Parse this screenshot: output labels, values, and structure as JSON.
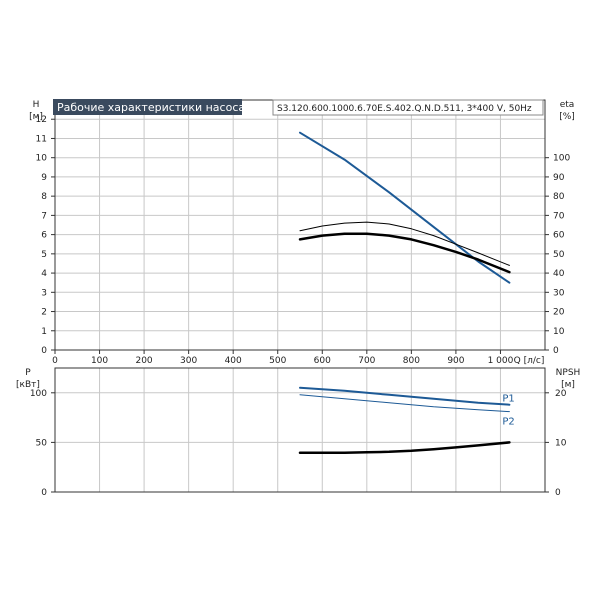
{
  "chart_data": [
    {
      "type": "line",
      "panel": "upper",
      "title": "Рабочие характеристики насоса",
      "model": "S3.120.600.1000.6.70E.S.402.Q.N.D.511, 3*400 V, 50Hz",
      "xlabel": "Q [л/с]",
      "ylabel_left": [
        "H",
        "[м]"
      ],
      "ylabel_right": [
        "eta",
        "[%]"
      ],
      "xlim": [
        0,
        1100
      ],
      "ylim_left": [
        0,
        13
      ],
      "ylim_right": [
        0,
        130
      ],
      "x_ticks": [
        0,
        100,
        200,
        300,
        400,
        500,
        600,
        700,
        800,
        900,
        1000
      ],
      "x_tick_labels": [
        "0",
        "100",
        "200",
        "300",
        "400",
        "500",
        "600",
        "700",
        "800",
        "900",
        "1 000"
      ],
      "y_ticks_left": [
        0,
        1,
        2,
        3,
        4,
        5,
        6,
        7,
        8,
        9,
        10,
        11,
        12
      ],
      "y_ticks_right": [
        0,
        10,
        20,
        30,
        40,
        50,
        60,
        70,
        80,
        90,
        100
      ],
      "grid": true,
      "series": [
        {
          "axis": "left",
          "color": "#1d5a96",
          "width": 2,
          "x": [
            550,
            650,
            750,
            850,
            950,
            1020
          ],
          "y": [
            11.3,
            9.9,
            8.2,
            6.4,
            4.6,
            3.5
          ]
        },
        {
          "axis": "right",
          "color": "#000000",
          "width": 1,
          "x": [
            550,
            600,
            650,
            700,
            750,
            800,
            850,
            900,
            950,
            1020
          ],
          "y": [
            62,
            64.5,
            66,
            66.5,
            65.5,
            63,
            59.5,
            55,
            50.5,
            44
          ]
        },
        {
          "axis": "right",
          "color": "#000000",
          "width": 2.5,
          "x": [
            550,
            600,
            650,
            700,
            750,
            800,
            850,
            900,
            950,
            1020
          ],
          "y": [
            57.5,
            59.5,
            60.5,
            60.5,
            59.5,
            57.5,
            54.5,
            51,
            47,
            40.5
          ]
        }
      ]
    },
    {
      "type": "line",
      "panel": "lower",
      "xlim": [
        0,
        1100
      ],
      "ylabel_left": [
        "P",
        "[кВт]"
      ],
      "ylabel_right": [
        "NPSH",
        "[м]"
      ],
      "ylim_left": [
        0,
        125
      ],
      "ylim_right": [
        0,
        25
      ],
      "y_ticks_left": [
        0,
        50,
        100
      ],
      "y_ticks_right": [
        0,
        10,
        20
      ],
      "grid": true,
      "series": [
        {
          "name": "P1",
          "axis": "left",
          "color": "#1d5a96",
          "width": 2,
          "x": [
            550,
            650,
            750,
            850,
            950,
            1020
          ],
          "y": [
            105,
            102,
            98,
            94,
            90,
            88
          ]
        },
        {
          "name": "P2",
          "axis": "left",
          "color": "#1d5a96",
          "width": 1,
          "x": [
            550,
            650,
            750,
            850,
            950,
            1020
          ],
          "y": [
            98,
            94,
            90,
            86,
            83,
            81
          ]
        },
        {
          "axis": "right",
          "color": "#000000",
          "width": 2.5,
          "x": [
            550,
            600,
            650,
            700,
            750,
            800,
            850,
            900,
            950,
            1020
          ],
          "y": [
            7.9,
            7.9,
            7.9,
            8.0,
            8.1,
            8.3,
            8.6,
            9.0,
            9.4,
            10.0
          ]
        }
      ]
    }
  ]
}
